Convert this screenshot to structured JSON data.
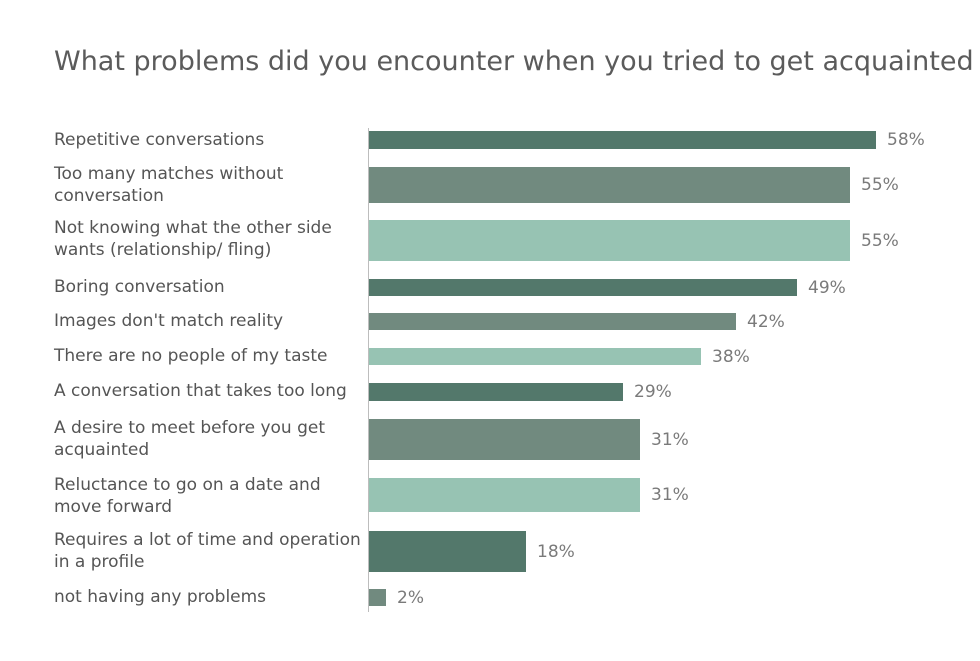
{
  "chart_data": {
    "type": "bar",
    "orientation": "horizontal",
    "title": "What problems did you encounter when you tried to get acquainted",
    "categories": [
      "Repetitive conversations",
      "Too many matches without conversation",
      "Not knowing what the other side wants (relationship/ fling)",
      "Boring conversation",
      "Images don't match reality",
      "There are no people of my taste",
      "A conversation that takes too long",
      "A desire to meet before you get acquainted",
      "Reluctance to go on a date and move forward",
      "Requires a lot of time and operation in a profile",
      "not having any problems"
    ],
    "values": [
      58,
      55,
      55,
      49,
      42,
      38,
      29,
      31,
      31,
      18,
      2
    ],
    "value_labels": [
      "58%",
      "55%",
      "55%",
      "49%",
      "42%",
      "38%",
      "29%",
      "31%",
      "31%",
      "18%",
      "2%"
    ],
    "unit": "%",
    "xlim": [
      0,
      58
    ],
    "bar_colors": [
      "#53786b",
      "#718a7f",
      "#97c3b3",
      "#53786b",
      "#718a7f",
      "#97c3b3",
      "#53786b",
      "#718a7f",
      "#97c3b3",
      "#53786b",
      "#718a7f"
    ],
    "grid": false,
    "legend": "none"
  }
}
